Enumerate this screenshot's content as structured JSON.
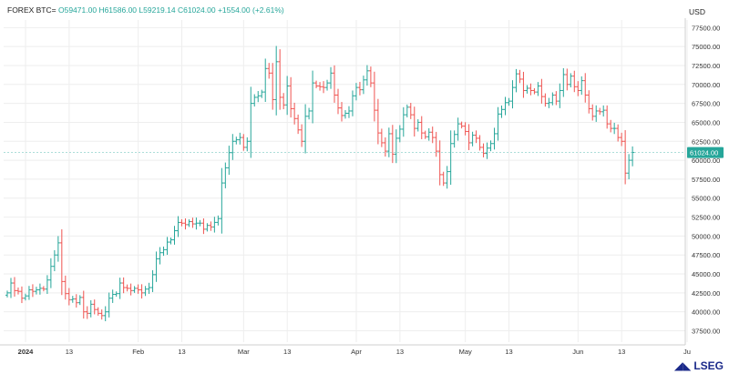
{
  "legend": {
    "symbol": "FOREX BTC=",
    "open": "O59471.00",
    "high": "H61586.00",
    "low": "L59219.14",
    "close": "C61024.00",
    "change": "+1554.00 (+2.61%)"
  },
  "currency": "USD",
  "brand": {
    "name": "LSEG",
    "icon": "lseg-logo-icon"
  },
  "colors": {
    "up": "#26a69a",
    "down": "#ef5350",
    "grid": "#eeeeee",
    "badge": "#26a69a"
  },
  "chart_data": {
    "type": "ohlc",
    "title": "",
    "xlabel": "",
    "ylabel": "",
    "ylim": [
      36000,
      78500
    ],
    "last_price": "61024.00",
    "y_ticks": [
      "37500.00",
      "40000.00",
      "42500.00",
      "45000.00",
      "47500.00",
      "50000.00",
      "52500.00",
      "55000.00",
      "57500.00",
      "60000.00",
      "62500.00",
      "65000.00",
      "67500.00",
      "70000.00",
      "72500.00",
      "75000.00",
      "77500.00"
    ],
    "x_ticks": [
      {
        "label": "2024",
        "date": "2024-01-01"
      },
      {
        "label": "13",
        "date": "2024-01-13"
      },
      {
        "label": "Feb",
        "date": "2024-02-01"
      },
      {
        "label": "13",
        "date": "2024-02-13"
      },
      {
        "label": "Mar",
        "date": "2024-03-01"
      },
      {
        "label": "13",
        "date": "2024-03-13"
      },
      {
        "label": "Apr",
        "date": "2024-04-01"
      },
      {
        "label": "13",
        "date": "2024-04-13"
      },
      {
        "label": "May",
        "date": "2024-05-01"
      },
      {
        "label": "13",
        "date": "2024-05-13"
      },
      {
        "label": "Jun",
        "date": "2024-06-01"
      },
      {
        "label": "13",
        "date": "2024-06-13"
      },
      {
        "label": "Ju",
        "date": "2024-07-01"
      }
    ],
    "closes": [
      42500,
      43800,
      42800,
      42700,
      41800,
      42100,
      42900,
      42700,
      42900,
      43100,
      43000,
      44200,
      46000,
      47500,
      49100,
      44000,
      42400,
      41600,
      41700,
      41200,
      41900,
      40000,
      39800,
      41000,
      40300,
      39800,
      39500,
      40000,
      41800,
      42300,
      42400,
      43800,
      43200,
      43100,
      42800,
      43100,
      42900,
      42500,
      43000,
      43200,
      44900,
      47000,
      47800,
      48200,
      49200,
      49500,
      50700,
      51800,
      51700,
      51500,
      51900,
      51600,
      51700,
      51700,
      50900,
      51400,
      51200,
      51800,
      52300,
      57000,
      59000,
      61000,
      62500,
      62700,
      63000,
      61700,
      62500,
      67500,
      68300,
      68500,
      69000,
      72100,
      71500,
      68000,
      73000,
      68300,
      67300,
      69800,
      66800,
      65500,
      64000,
      62500,
      65800,
      66500,
      70200,
      69800,
      69700,
      69600,
      70200,
      71500,
      68600,
      66900,
      65900,
      66200,
      66500,
      68500,
      69600,
      69300,
      70600,
      71800,
      70200,
      66600,
      63600,
      62300,
      61200,
      63500,
      60800,
      62900,
      64100,
      66000,
      67000,
      66000,
      64200,
      65000,
      63600,
      63100,
      63700,
      63000,
      61200,
      58100,
      57000,
      58500,
      62200,
      63400,
      64800,
      64500,
      63800,
      62300,
      63300,
      62900,
      61700,
      60900,
      61600,
      62200,
      63500,
      66100,
      66700,
      67600,
      67800,
      69600,
      71400,
      70700,
      69200,
      69500,
      69200,
      69000,
      69800,
      68400,
      67500,
      67600,
      68600,
      67800,
      69200,
      71300,
      70000,
      71100,
      69700,
      69200,
      70500,
      68600,
      66800,
      65800,
      66500,
      66400,
      66600,
      64800,
      64200,
      64200,
      63000,
      62500,
      58300,
      60000,
      61024
    ]
  }
}
